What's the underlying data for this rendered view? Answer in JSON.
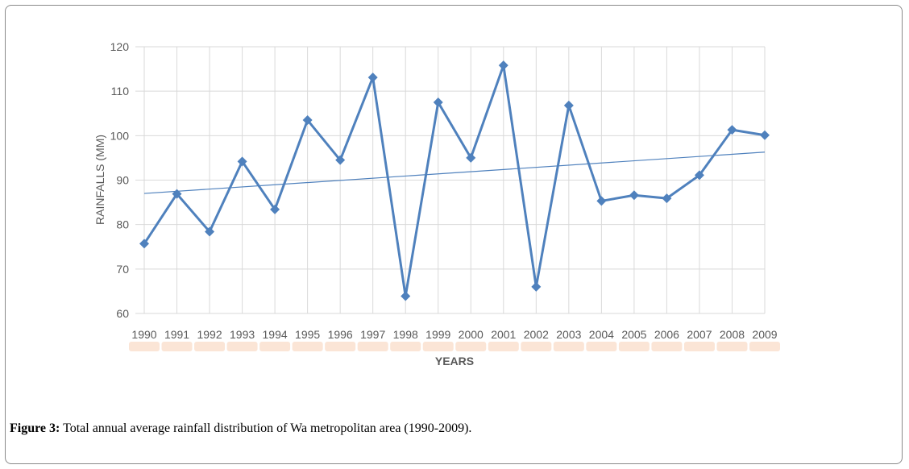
{
  "chart_data": {
    "type": "line",
    "ylabel": "RAINFALLS (MM)",
    "xlabel": "YEARS",
    "ylim": [
      60,
      120
    ],
    "yticks": [
      60,
      70,
      80,
      90,
      100,
      110,
      120
    ],
    "categories": [
      "1990",
      "1991",
      "1992",
      "1993",
      "1994",
      "1995",
      "1996",
      "1997",
      "1998",
      "1999",
      "2000",
      "2001",
      "2002",
      "2003",
      "2004",
      "2005",
      "2006",
      "2007",
      "2008",
      "2009"
    ],
    "series": [
      {
        "values": [
          75.7,
          86.9,
          78.4,
          94.2,
          83.4,
          103.5,
          94.5,
          113.1,
          63.9,
          107.5,
          95.0,
          115.8,
          66.0,
          106.8,
          85.3,
          86.6,
          85.9,
          91.1,
          101.3,
          100.1
        ],
        "color": "#4f81bd",
        "marker": "diamond"
      }
    ],
    "trendline": {
      "type": "linear",
      "start": 87.0,
      "end": 96.3,
      "color": "#4f81bd"
    },
    "grid": "both"
  },
  "caption": {
    "label": "Figure 3:",
    "text": " Total annual average rainfall distribution of Wa metropolitan area (1990-2009)."
  }
}
